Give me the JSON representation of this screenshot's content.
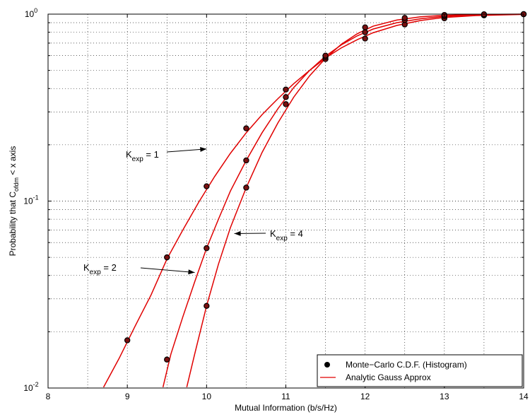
{
  "chart_data": {
    "type": "line",
    "xlabel": "Mutual Information (b/s/Hz)",
    "ylabel": {
      "pre": "Probability that C",
      "sub": "ofdm",
      "post": " < x axis"
    },
    "xlim": [
      8,
      14
    ],
    "ylim": [
      0.01,
      1
    ],
    "yscale": "log",
    "grid": true,
    "x_ticks": [
      "8",
      "9",
      "10",
      "11",
      "12",
      "13",
      "14"
    ],
    "y_ticks": [
      {
        "base": "10",
        "exp": "-2"
      },
      {
        "base": "10",
        "exp": "-1"
      },
      {
        "base": "10",
        "exp": "0"
      }
    ],
    "legend": {
      "placement": "bottom-right",
      "entries": [
        {
          "label": "Monte−Carlo C.D.F. (Histogram)",
          "marker": "dot",
          "color": "#000000"
        },
        {
          "label": "Analytic Gauss Approx",
          "marker": "line",
          "color": "#e00000"
        }
      ]
    },
    "colors": {
      "curve": "#e00000",
      "marker": "#000000",
      "marker_fill": "#7a1010"
    },
    "annotations": [
      {
        "text_pre": "K",
        "sub": "exp",
        "text_post": " = 1",
        "target": [
          10.0,
          0.19
        ]
      },
      {
        "text_pre": "K",
        "sub": "exp",
        "text_post": " = 2",
        "target": [
          9.85,
          0.0415
        ]
      },
      {
        "text_pre": "K",
        "sub": "exp",
        "text_post": " = 4",
        "target": [
          10.35,
          0.067
        ]
      }
    ],
    "series": [
      {
        "curve": {
          "x": [
            8.7,
            8.9,
            9.1,
            9.3,
            9.5,
            9.7,
            9.9,
            10.1,
            10.3,
            10.5,
            10.7,
            10.9,
            11.1,
            11.3,
            11.5,
            11.7,
            11.9,
            12.1,
            12.4,
            12.7,
            13.0,
            13.4,
            14.0
          ],
          "y": [
            0.0101,
            0.0145,
            0.0215,
            0.0315,
            0.049,
            0.07,
            0.0985,
            0.135,
            0.18,
            0.232,
            0.29,
            0.353,
            0.425,
            0.5,
            0.583,
            0.66,
            0.73,
            0.795,
            0.87,
            0.925,
            0.96,
            0.983,
            0.997
          ]
        },
        "points": {
          "x": [
            9.0,
            9.5,
            10.0,
            10.5,
            11.0,
            11.5,
            12.0,
            12.5,
            13.0,
            13.5,
            14.0
          ],
          "y": [
            0.018,
            0.05,
            0.12,
            0.245,
            0.395,
            0.575,
            0.74,
            0.88,
            0.95,
            0.985,
            0.999
          ]
        }
      },
      {
        "curve": {
          "x": [
            9.45,
            9.55,
            9.7,
            9.85,
            10.0,
            10.15,
            10.3,
            10.5,
            10.7,
            10.9,
            11.1,
            11.3,
            11.5,
            11.7,
            11.9,
            12.1,
            12.4,
            12.7,
            13.0,
            13.4,
            14.0
          ],
          "y": [
            0.0101,
            0.0152,
            0.024,
            0.037,
            0.056,
            0.08,
            0.113,
            0.165,
            0.232,
            0.312,
            0.405,
            0.5,
            0.596,
            0.685,
            0.765,
            0.832,
            0.9,
            0.945,
            0.973,
            0.99,
            0.999
          ]
        },
        "points": {
          "x": [
            9.5,
            10.0,
            10.5,
            11.0,
            11.5,
            12.0,
            12.5,
            13.0,
            13.5,
            14.0
          ],
          "y": [
            0.0142,
            0.056,
            0.165,
            0.36,
            0.59,
            0.8,
            0.93,
            0.975,
            0.993,
            0.9995
          ]
        }
      },
      {
        "curve": {
          "x": [
            9.75,
            9.85,
            10.0,
            10.15,
            10.3,
            10.5,
            10.7,
            10.9,
            11.1,
            11.3,
            11.5,
            11.7,
            11.9,
            12.1,
            12.4,
            12.7,
            13.0,
            13.4,
            14.0
          ],
          "y": [
            0.0101,
            0.0152,
            0.0275,
            0.046,
            0.072,
            0.118,
            0.182,
            0.262,
            0.36,
            0.468,
            0.58,
            0.69,
            0.785,
            0.862,
            0.93,
            0.968,
            0.986,
            0.996,
            1.0
          ]
        },
        "points": {
          "x": [
            10.0,
            10.5,
            11.0,
            11.5,
            12.0,
            12.5,
            13.0,
            13.5,
            14.0
          ],
          "y": [
            0.0275,
            0.118,
            0.33,
            0.6,
            0.85,
            0.955,
            0.99,
            0.998,
            1.0
          ]
        }
      }
    ]
  }
}
